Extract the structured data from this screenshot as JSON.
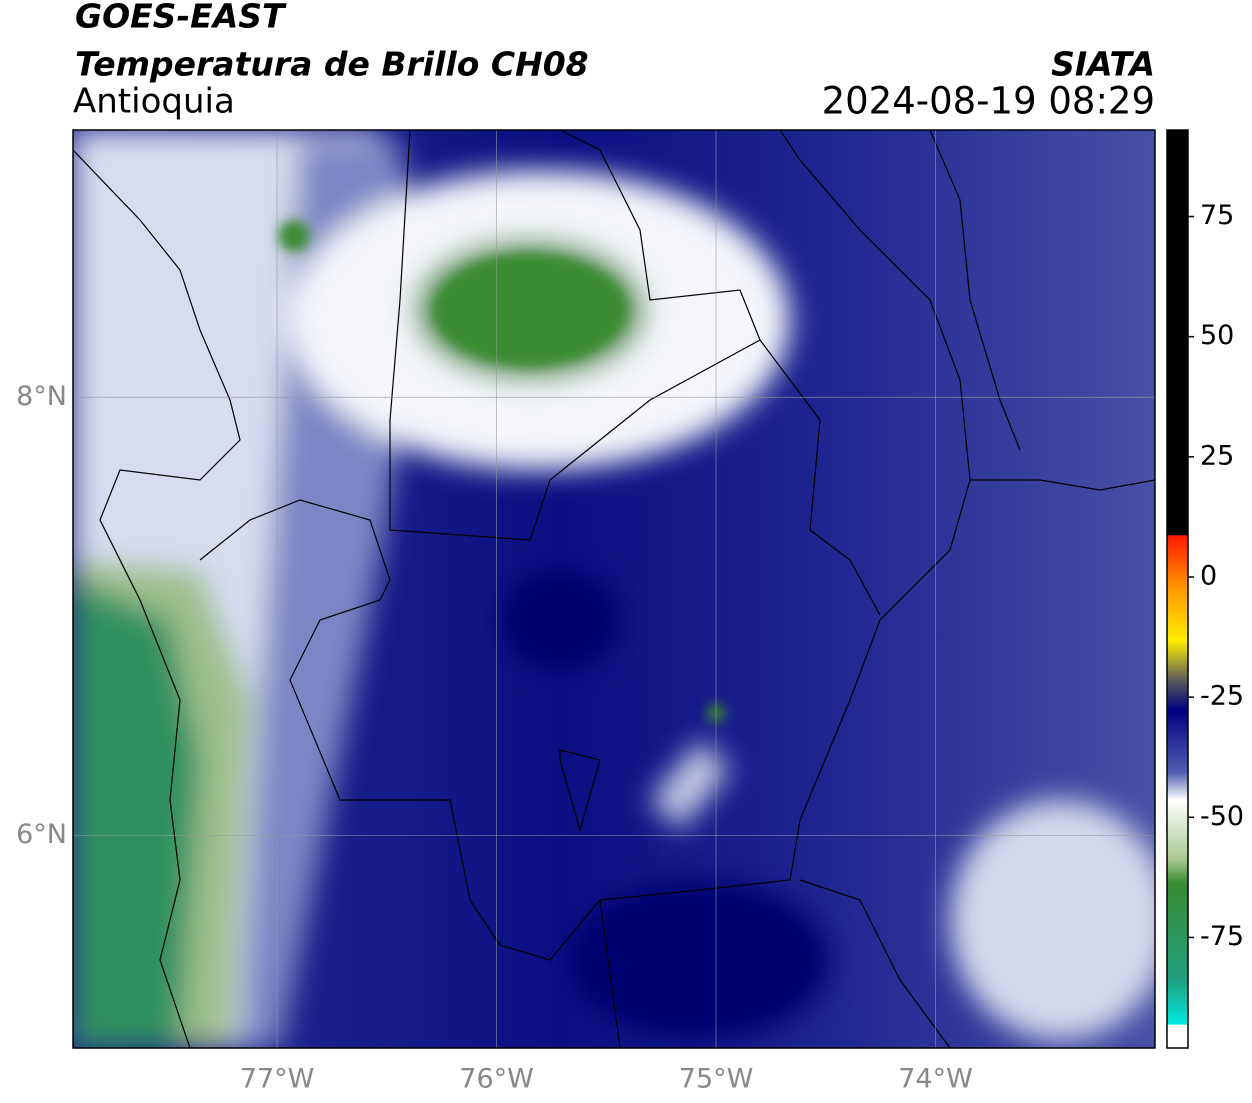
{
  "header": {
    "title": "GOES-EAST",
    "subtitle": "Temperatura de Brillo CH08",
    "region": "Antioquia",
    "source": "SIATA",
    "datetime": "2024-08-19 08:29"
  },
  "map": {
    "xlim": [
      -77.93,
      -73.0
    ],
    "ylim": [
      5.03,
      9.22
    ],
    "xticks": [
      {
        "value": -77,
        "label": "77°W"
      },
      {
        "value": -76,
        "label": "76°W"
      },
      {
        "value": -75,
        "label": "75°W"
      },
      {
        "value": -74,
        "label": "74°W"
      }
    ],
    "yticks": [
      {
        "value": 6,
        "label": "6°N"
      },
      {
        "value": 8,
        "label": "8°N"
      }
    ],
    "grid": true
  },
  "colorbar": {
    "lim": [
      -98,
      93
    ],
    "ticks": [
      75,
      50,
      25,
      0,
      -25,
      -50,
      -75
    ]
  }
}
